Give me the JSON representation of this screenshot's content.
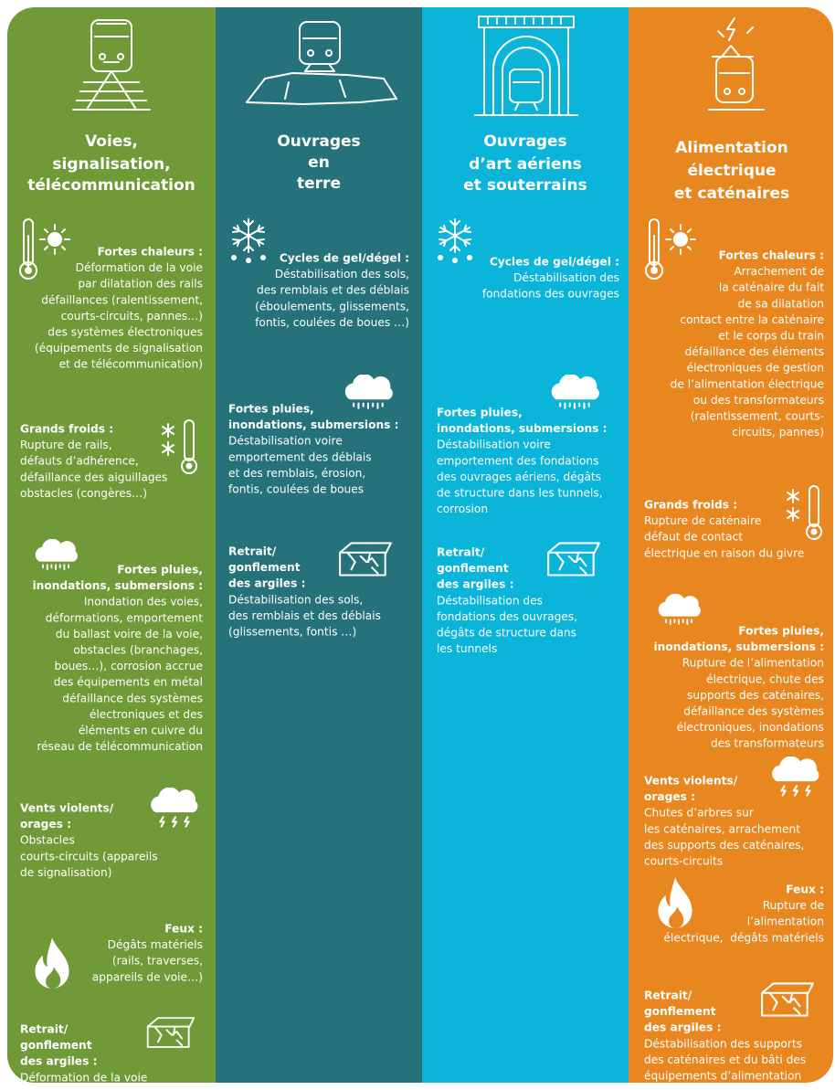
{
  "columns": [
    {
      "title": [
        "Voies,",
        "signalisation,",
        "télécommunication"
      ],
      "items": [
        {
          "heading": [
            "Fortes chaleurs :"
          ],
          "body": [
            "Déformation de la voie",
            "par dilatation des rails",
            "défaillances (ralentissement,",
            "courts-circuits, pannes…)",
            "des systèmes électroniques",
            "(équipements de signalisation",
            "et de télécommunication)"
          ]
        },
        {
          "heading": [
            "Grands froids :"
          ],
          "body": [
            "Rupture de rails,",
            "défauts d’adhérence,",
            "défaillance des aiguillages",
            "obstacles (congères…)"
          ]
        },
        {
          "heading": [
            "Fortes pluies,",
            "inondations, submersions :"
          ],
          "body": [
            "Inondation des voies,",
            "déformations, emportement",
            "du ballast voire de la voie,",
            "obstacles (branchages,",
            "boues…), corrosion accrue",
            "des équipements en métal",
            "défaillance des systèmes",
            "électroniques et des",
            "éléments en cuivre du",
            "réseau de télécommunication"
          ]
        },
        {
          "heading": [
            "Vents violents/",
            "orages :"
          ],
          "body": [
            "Obstacles",
            "courts-circuits (appareils",
            "de signalisation)"
          ]
        },
        {
          "heading": [
            "Feux :"
          ],
          "body": [
            "Dégâts matériels",
            "(rails, traverses,",
            "appareils de voie…)"
          ]
        },
        {
          "heading": [
            "Retrait/",
            "gonflement",
            "des argiles :"
          ],
          "body": [
            "Déformation de la voie"
          ]
        }
      ]
    },
    {
      "title": [
        "Ouvrages",
        "en",
        "terre"
      ],
      "items": [
        {
          "heading": [
            "Cycles de gel/dégel :"
          ],
          "body": [
            "Déstabilisation des sols,",
            "des remblais et des déblais",
            "(éboulements, glissements,",
            "fontis, coulées de boues …)"
          ]
        },
        {
          "heading": [
            "Fortes pluies,",
            "inondations, submersions :"
          ],
          "body": [
            "Déstabilisation voire",
            "emportement des déblais",
            "et des remblais, érosion,",
            "fontis, coulées de boues"
          ]
        },
        {
          "heading": [
            "Retrait/",
            "gonflement",
            "des argiles :"
          ],
          "body": [
            "Déstabilisation des sols,",
            "des remblais et des déblais",
            "(glissements, fontis …)"
          ]
        }
      ]
    },
    {
      "title": [
        "Ouvrages",
        "d’art aériens",
        "et souterrains"
      ],
      "items": [
        {
          "heading": [
            "Cycles de gel/dégel :"
          ],
          "body": [
            "Déstabilisation des",
            "fondations des ouvrages"
          ]
        },
        {
          "heading": [
            "Fortes pluies,",
            "inondations, submersions :"
          ],
          "body": [
            "Déstabilisation voire",
            "emportement des fondations",
            "des ouvrages aériens, dégâts",
            "de structure dans les tunnels,",
            "corrosion"
          ]
        },
        {
          "heading": [
            "Retrait/",
            "gonflement",
            "des argiles :"
          ],
          "body": [
            "Déstabilisation des",
            "fondations des ouvrages,",
            "dégâts de structure dans",
            "les tunnels"
          ]
        }
      ]
    },
    {
      "title": [
        "Alimentation",
        "électrique",
        "et caténaires"
      ],
      "items": [
        {
          "heading": [
            "Fortes chaleurs :"
          ],
          "body": [
            "Arrachement de",
            "la caténaire du fait",
            "de sa dilatation",
            "contact entre la caténaire",
            "et le corps du train",
            "défaillance des éléments",
            "électroniques de gestion",
            "de l’alimentation électrique",
            "ou des transformateurs",
            "(ralentissement, courts-",
            "circuits, pannes)"
          ]
        },
        {
          "heading": [
            "Grands froids :"
          ],
          "body": [
            "Rupture de caténaire",
            "défaut de contact",
            "électrique en raison du givre"
          ]
        },
        {
          "heading": [
            "Fortes pluies,",
            "inondations, submersions :"
          ],
          "body": [
            "Rupture de l’alimentation",
            "électrique, chute des",
            "supports des caténaires,",
            "défaillance des systèmes",
            "électroniques, inondations",
            "des transformateurs"
          ]
        },
        {
          "heading": [
            "Vents violents/",
            "orages :"
          ],
          "body": [
            "Chutes d’arbres sur",
            "les caténaires, arrachement",
            "des supports des caténaires,",
            "courts-circuits"
          ]
        },
        {
          "heading": [
            "Feux :"
          ],
          "body": [
            "Rupture de",
            "l’alimentation",
            "électrique,  dégâts matériels"
          ]
        },
        {
          "heading": [
            "Retrait/",
            "gonflement",
            "des argiles :"
          ],
          "body": [
            "Déstabilisation des supports",
            "des caténaires et du bâti des",
            "équipements d’alimentation"
          ]
        }
      ]
    }
  ]
}
